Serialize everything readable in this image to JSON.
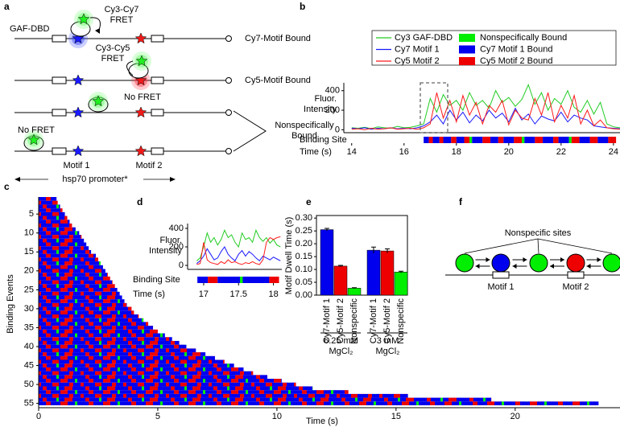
{
  "panel_labels": [
    "a",
    "b",
    "c",
    "d",
    "e",
    "f"
  ],
  "diagram_a": {
    "protein": "GAF-DBD",
    "fret_cy7": "Cy3-Cy7 FRET",
    "fret_cy5": "Cy3-Cy5 FRET",
    "no_fret_1": "No FRET",
    "no_fret_2": "No FRET",
    "state_cy7": "Cy7-Motif Bound",
    "state_cy5": "Cy5-Motif Bound",
    "state_nonspecific": "Nonspecifically Bound",
    "motif_1": "Motif 1",
    "motif_2": "Motif 2",
    "promoter": "hsp70 promoter*"
  },
  "diagram_f": {
    "nonspecific": "Nonspecific sites",
    "motif_1": "Motif 1",
    "motif_2": "Motif 2"
  },
  "chart_data": [
    {
      "type": "line",
      "y_label": "Fluor. Intensity",
      "x_label": "Time (s)",
      "x": [
        14,
        14.25,
        14.5,
        14.75,
        15,
        15.25,
        15.5,
        15.75,
        16,
        16.25,
        16.5,
        16.75,
        17,
        17.25,
        17.5,
        17.75,
        18,
        18.25,
        18.5,
        18.75,
        19,
        19.25,
        19.5,
        19.75,
        20,
        20.25,
        20.5,
        20.75,
        21,
        21.25,
        21.5,
        21.75,
        22,
        22.25,
        22.5,
        22.75,
        23,
        23.25,
        23.5,
        23.75,
        24,
        24.25
      ],
      "series": [
        {
          "name": "Cy3 GAF-DBD",
          "color": "#22cc22",
          "values": [
            20,
            15,
            25,
            10,
            30,
            20,
            15,
            35,
            20,
            25,
            40,
            60,
            320,
            180,
            360,
            250,
            300,
            200,
            380,
            250,
            300,
            220,
            400,
            280,
            330,
            240,
            310,
            460,
            260,
            380,
            200,
            320,
            260,
            400,
            230,
            180,
            300,
            160,
            280,
            60,
            30,
            20
          ]
        },
        {
          "name": "Cy7 Motif 1",
          "color": "#1a1aff",
          "values": [
            15,
            10,
            20,
            5,
            15,
            10,
            20,
            10,
            15,
            10,
            20,
            40,
            80,
            150,
            60,
            200,
            100,
            180,
            70,
            150,
            90,
            200,
            120,
            170,
            80,
            220,
            100,
            160,
            60,
            140,
            110,
            90,
            180,
            80,
            150,
            120,
            100,
            40,
            30,
            20,
            15,
            10
          ]
        },
        {
          "name": "Cy5 Motif 2",
          "color": "#ff1a1a",
          "values": [
            5,
            10,
            0,
            15,
            5,
            10,
            20,
            5,
            10,
            15,
            5,
            20,
            60,
            380,
            120,
            300,
            80,
            350,
            150,
            280,
            60,
            250,
            180,
            300,
            50,
            200,
            120,
            100,
            320,
            150,
            380,
            80,
            250,
            120,
            350,
            60,
            200,
            40,
            100,
            20,
            10,
            5
          ]
        }
      ],
      "states": [
        {
          "name": "Nonspecifically Bound",
          "color": "#00ee00"
        },
        {
          "name": "Cy7 Motif 1 Bound",
          "color": "#0000ee"
        },
        {
          "name": "Cy5 Motif 2 Bound",
          "color": "#ee0000"
        }
      ],
      "binding_site": {
        "label": "Binding Site",
        "segments": [
          {
            "start": 16.75,
            "end": 16.95,
            "color": "#0000ee"
          },
          {
            "start": 16.95,
            "end": 17.1,
            "color": "#ee0000"
          },
          {
            "start": 17.1,
            "end": 17.35,
            "color": "#0000ee"
          },
          {
            "start": 17.35,
            "end": 17.5,
            "color": "#ee0000"
          },
          {
            "start": 17.5,
            "end": 17.8,
            "color": "#0000ee"
          },
          {
            "start": 17.8,
            "end": 18,
            "color": "#ee0000"
          },
          {
            "start": 18,
            "end": 18.3,
            "color": "#0000ee"
          },
          {
            "start": 18.3,
            "end": 18.5,
            "color": "#ee0000"
          },
          {
            "start": 18.5,
            "end": 18.6,
            "color": "#00ee00"
          },
          {
            "start": 18.6,
            "end": 19,
            "color": "#0000ee"
          },
          {
            "start": 19,
            "end": 19.3,
            "color": "#ee0000"
          },
          {
            "start": 19.3,
            "end": 19.6,
            "color": "#0000ee"
          },
          {
            "start": 19.6,
            "end": 19.8,
            "color": "#ee0000"
          },
          {
            "start": 19.8,
            "end": 20.2,
            "color": "#0000ee"
          },
          {
            "start": 20.2,
            "end": 20.5,
            "color": "#ee0000"
          },
          {
            "start": 20.5,
            "end": 20.6,
            "color": "#00ee00"
          },
          {
            "start": 20.6,
            "end": 21,
            "color": "#0000ee"
          },
          {
            "start": 21,
            "end": 21.3,
            "color": "#ee0000"
          },
          {
            "start": 21.3,
            "end": 21.7,
            "color": "#0000ee"
          },
          {
            "start": 21.7,
            "end": 21.9,
            "color": "#ee0000"
          },
          {
            "start": 21.9,
            "end": 22.3,
            "color": "#0000ee"
          },
          {
            "start": 22.3,
            "end": 22.4,
            "color": "#00ee00"
          },
          {
            "start": 22.4,
            "end": 22.7,
            "color": "#ee0000"
          },
          {
            "start": 22.7,
            "end": 23.1,
            "color": "#0000ee"
          },
          {
            "start": 23.1,
            "end": 23.4,
            "color": "#ee0000"
          },
          {
            "start": 23.4,
            "end": 23.8,
            "color": "#0000ee"
          },
          {
            "start": 23.8,
            "end": 24.1,
            "color": "#ee0000"
          }
        ]
      },
      "xlim": [
        13.7,
        24.25
      ],
      "xticks": [
        14,
        16,
        18,
        20,
        22,
        24
      ],
      "ylim": [
        -30,
        480
      ],
      "yticks": [
        0,
        200,
        400
      ]
    },
    {
      "type": "barh",
      "y_label": "Binding Events",
      "x_label": "Time (s)",
      "color": "#0000ee",
      "values": [
        0.75,
        0.8,
        0.9,
        1.0,
        1.1,
        1.2,
        1.3,
        1.4,
        1.55,
        1.7,
        1.8,
        1.9,
        2.0,
        2.1,
        2.2,
        2.4,
        2.5,
        2.6,
        2.7,
        2.8,
        2.9,
        3.0,
        3.1,
        3.2,
        3.3,
        3.4,
        3.5,
        3.6,
        3.7,
        3.9,
        4.0,
        4.2,
        4.4,
        4.6,
        4.8,
        5.0,
        5.3,
        5.6,
        5.9,
        6.2,
        6.6,
        7.0,
        7.4,
        7.8,
        8.2,
        8.6,
        9.0,
        9.6,
        10.2,
        10.8,
        11.5,
        13.0,
        15.5,
        19.0,
        23.5
      ],
      "xlim": [
        0,
        24.4
      ],
      "xticks": [
        0,
        5,
        10,
        15,
        20
      ],
      "ylim": [
        0.5,
        55.5
      ],
      "yticks": [
        5,
        10,
        15,
        20,
        25,
        30,
        35,
        40,
        45,
        50,
        55
      ]
    },
    {
      "type": "line",
      "y_label": "Fluor. Intensity",
      "x_label": "Time (s)",
      "x": [
        16.9,
        16.95,
        17,
        17.05,
        17.1,
        17.15,
        17.2,
        17.25,
        17.3,
        17.35,
        17.4,
        17.45,
        17.5,
        17.55,
        17.6,
        17.65,
        17.7,
        17.75,
        17.8,
        17.85,
        17.9,
        17.95,
        18,
        18.05,
        18.1
      ],
      "series": [
        {
          "color": "#22cc22",
          "values": [
            50,
            80,
            200,
            350,
            250,
            300,
            220,
            280,
            380,
            300,
            330,
            250,
            200,
            350,
            280,
            300,
            250,
            380,
            300,
            260,
            300,
            240,
            280,
            220,
            200
          ]
        },
        {
          "color": "#1a1aff",
          "values": [
            20,
            50,
            100,
            180,
            120,
            60,
            80,
            150,
            200,
            120,
            80,
            50,
            120,
            160,
            100,
            150,
            120,
            80,
            50,
            100,
            80,
            60,
            90,
            70,
            50
          ]
        },
        {
          "color": "#ff1a1a",
          "values": [
            10,
            20,
            250,
            60,
            30,
            20,
            10,
            40,
            20,
            60,
            30,
            40,
            20,
            10,
            30,
            20,
            40,
            20,
            10,
            60,
            250,
            300,
            280,
            300,
            310
          ]
        }
      ],
      "binding_site": {
        "label": "Binding Site",
        "segments": [
          {
            "start": 16.91,
            "end": 17.06,
            "color": "#0000ee"
          },
          {
            "start": 17.06,
            "end": 17.2,
            "color": "#ee0000"
          },
          {
            "start": 17.2,
            "end": 17.52,
            "color": "#0000ee"
          },
          {
            "start": 17.52,
            "end": 17.56,
            "color": "#00ee00"
          },
          {
            "start": 17.56,
            "end": 17.94,
            "color": "#0000ee"
          },
          {
            "start": 17.94,
            "end": 18.08,
            "color": "#ee0000"
          }
        ]
      },
      "xlim": [
        16.77,
        18.12
      ],
      "xticks": [
        17,
        {
          "value": 17.5,
          "label": "17.5"
        },
        18
      ],
      "ylim": [
        -43,
        452
      ],
      "yticks": [
        0,
        200,
        400
      ]
    },
    {
      "type": "bar",
      "y_label": "Motif Dwell Time (s)",
      "colors": [
        "#0000ee",
        "#ee0000",
        "#00ee00"
      ],
      "groups": [
        {
          "label": "6.25 mM MgCl₂",
          "categories": [
            "Cy7-Motif 1",
            "Cy5-Motif 2",
            "Nonspecific"
          ],
          "values": [
            0.255,
            0.113,
            0.027
          ],
          "errors": [
            0.005,
            0.003,
            0.002
          ]
        },
        {
          "label": "3 mM MgCl₂",
          "categories": [
            "Cy7-Motif 1",
            "Cy5-Motif 2",
            "Nonspecific"
          ],
          "values": [
            0.175,
            0.172,
            0.09
          ],
          "errors": [
            0.012,
            0.008,
            0.003
          ]
        }
      ],
      "ylim": [
        0,
        0.31
      ],
      "yticks": [
        {
          "value": 0,
          "label": "0.00"
        },
        {
          "value": 0.05,
          "label": "0.05"
        },
        {
          "value": 0.1,
          "label": "0.10"
        },
        {
          "value": 0.15,
          "label": "0.15"
        },
        {
          "value": 0.2,
          "label": "0.20"
        },
        {
          "value": 0.25,
          "label": "0.25"
        },
        {
          "value": 0.3,
          "label": "0.30"
        }
      ]
    }
  ]
}
